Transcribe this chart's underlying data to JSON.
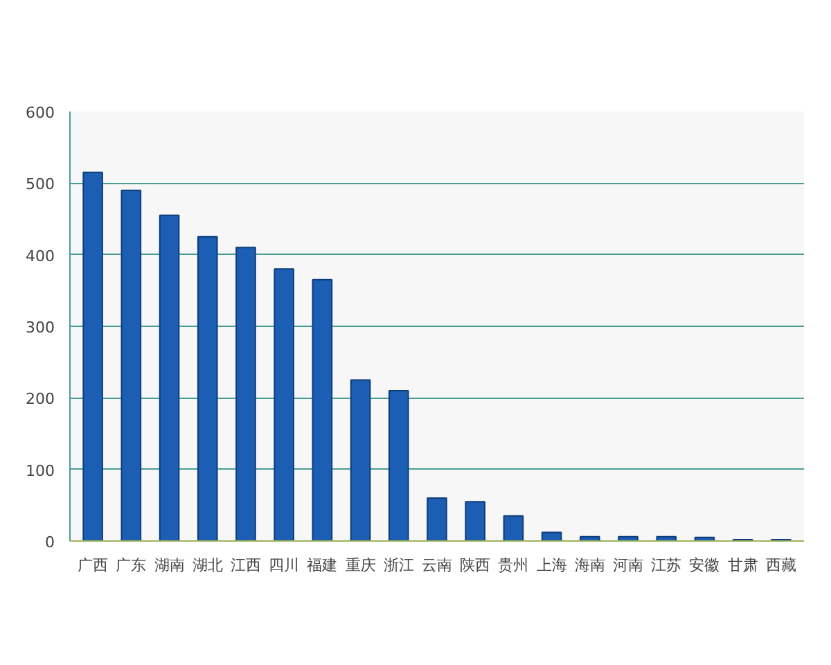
{
  "chart_data": {
    "type": "bar",
    "categories": [
      "广西",
      "广东",
      "湖南",
      "湖北",
      "江西",
      "四川",
      "福建",
      "重庆",
      "浙江",
      "云南",
      "陕西",
      "贵州",
      "上海",
      "海南",
      "河南",
      "江苏",
      "安徽",
      "甘肃",
      "西藏"
    ],
    "values": [
      515,
      490,
      455,
      425,
      410,
      380,
      365,
      225,
      210,
      60,
      55,
      35,
      12,
      6,
      6,
      6,
      5,
      2,
      2
    ],
    "color": "#1c5eb3",
    "ylim": [
      0,
      600
    ],
    "yticks": [
      0,
      100,
      200,
      300,
      400,
      500,
      600
    ],
    "grid": "y"
  }
}
